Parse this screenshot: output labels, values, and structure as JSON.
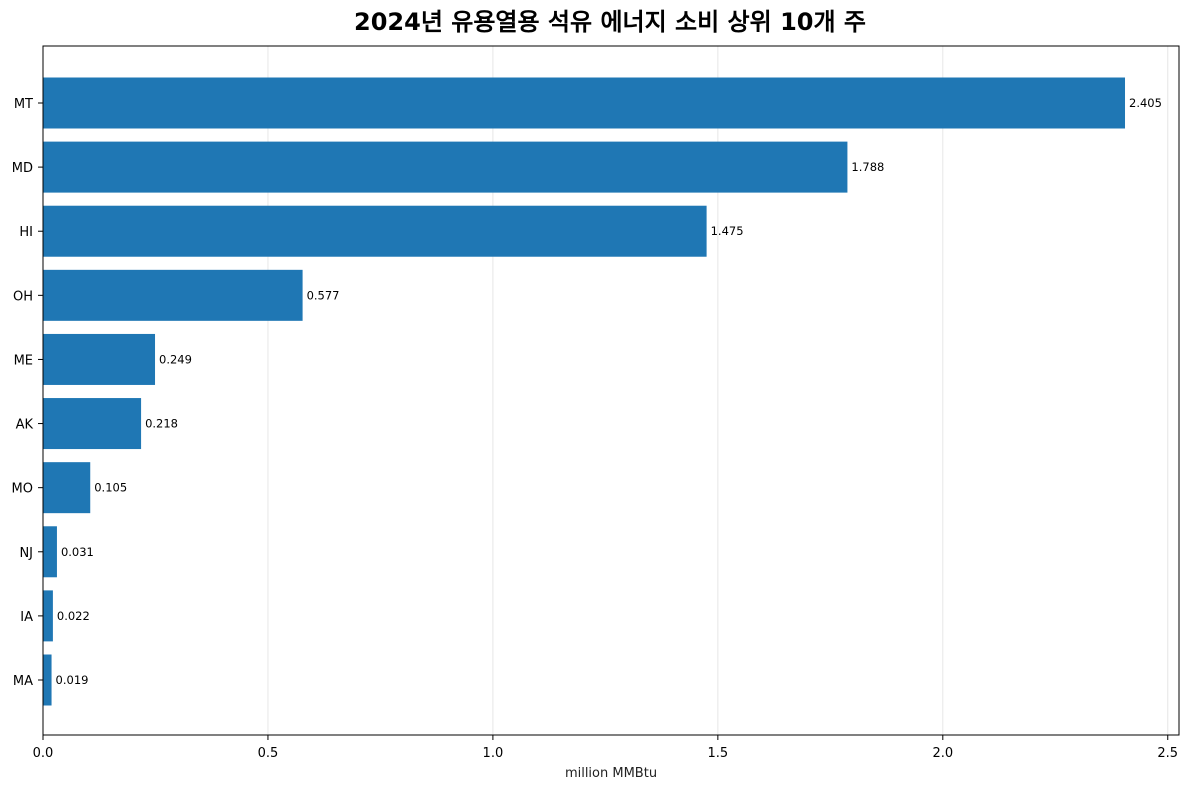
{
  "chart_data": {
    "type": "bar",
    "orientation": "horizontal",
    "title": "2024년 유용열용 석유 에너지 소비 상위 10개 주",
    "xlabel": "million MMBtu",
    "ylabel": "",
    "categories": [
      "MT",
      "MD",
      "HI",
      "OH",
      "ME",
      "AK",
      "MO",
      "NJ",
      "IA",
      "MA"
    ],
    "values": [
      2.405,
      1.788,
      1.475,
      0.577,
      0.249,
      0.218,
      0.105,
      0.031,
      0.022,
      0.019
    ],
    "value_labels": [
      "2.405",
      "1.788",
      "1.475",
      "0.577",
      "0.249",
      "0.218",
      "0.105",
      "0.031",
      "0.022",
      "0.019"
    ],
    "xlim": [
      0,
      2.525
    ],
    "xticks": [
      0,
      0.5,
      1.0,
      1.5,
      2.0,
      2.5
    ],
    "xtick_labels": [
      "0.0",
      "0.5",
      "1.0",
      "1.5",
      "2.0",
      "2.5"
    ],
    "grid": "vertical",
    "bar_color": "#1f77b4",
    "grid_color": "#e6e6e6"
  }
}
